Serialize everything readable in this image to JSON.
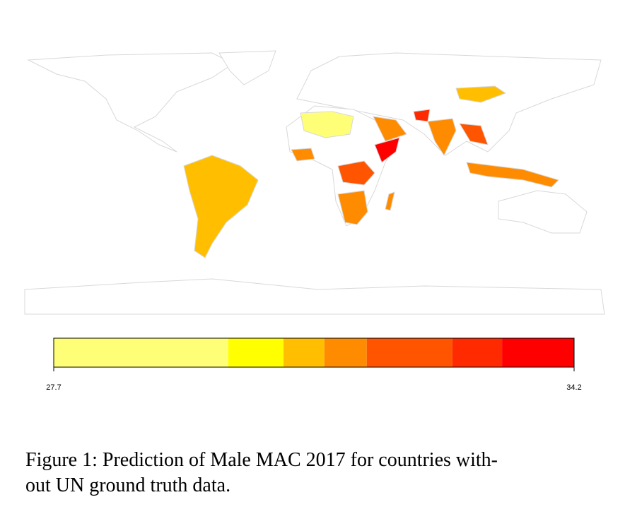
{
  "chart_data": {
    "type": "colorbar",
    "xlim": [
      27.7,
      34.2
    ],
    "xticks": [
      27.7,
      34.2
    ],
    "bins": [
      27.7,
      29.88,
      30.57,
      31.08,
      31.61,
      32.68,
      33.3,
      34.2
    ],
    "colors": [
      "#FFFF77",
      "#FFFF00",
      "#FFBF00",
      "#FF8C00",
      "#FF5500",
      "#FF2A00",
      "#FF0000"
    ],
    "caption": {
      "lines": [
        "Figure 1: Prediction of Male MAC 2017 for countries with-",
        "out UN ground truth data."
      ]
    }
  }
}
